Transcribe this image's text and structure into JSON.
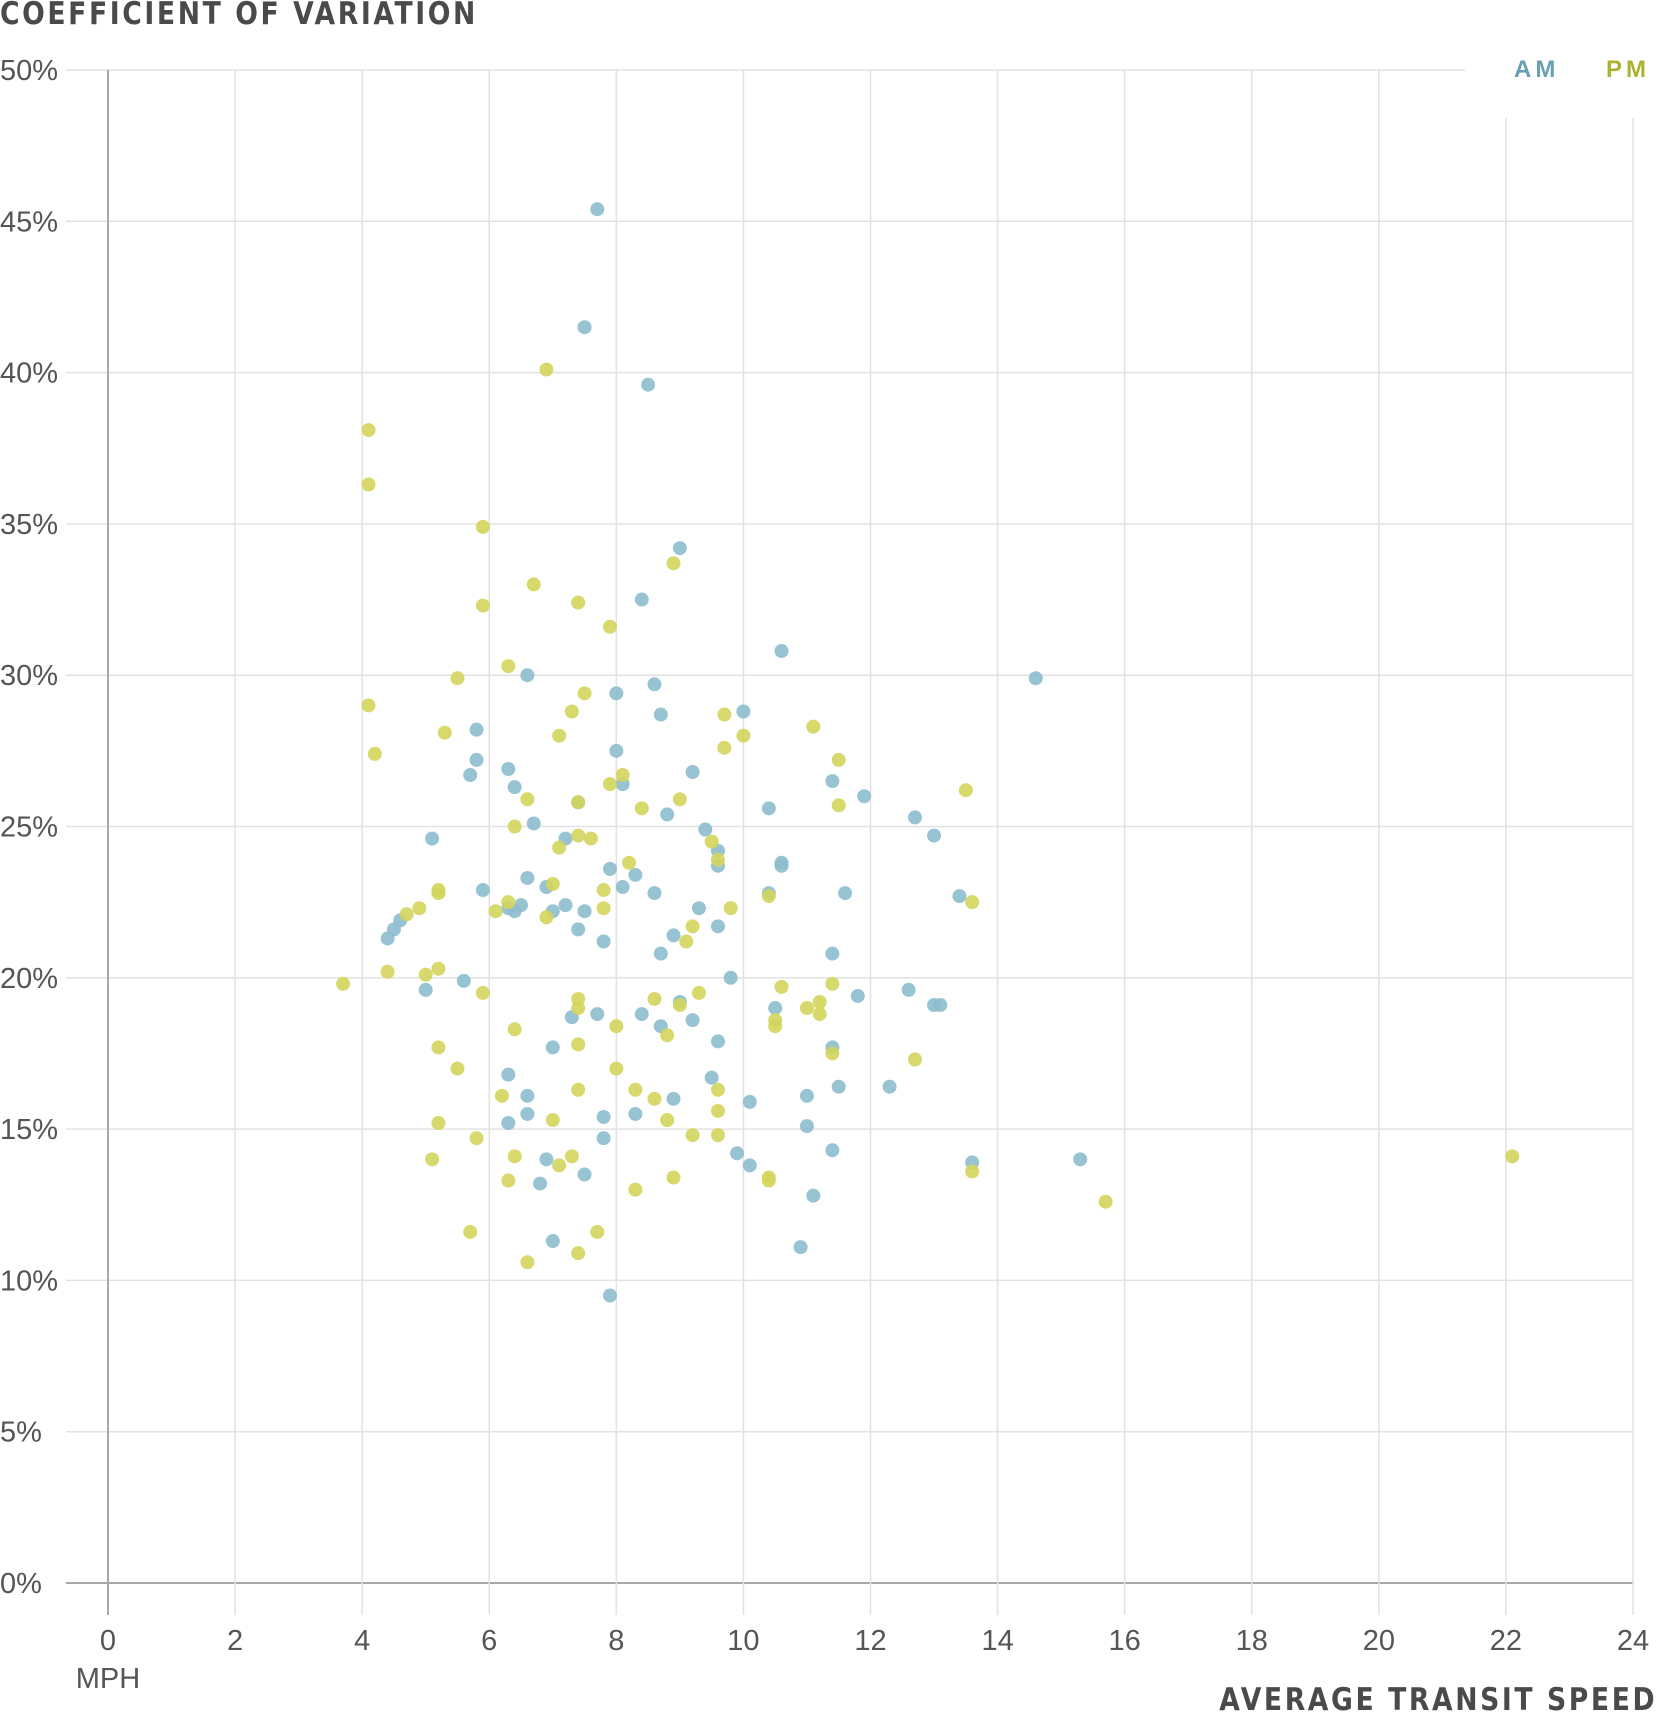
{
  "chart_data": {
    "type": "scatter",
    "title": "COEFFICIENT OF VARIATION",
    "xlabel": "AVERAGE TRANSIT SPEED",
    "x_unit": "MPH",
    "ylabel": "COEFFICIENT OF VARIATION",
    "xlim": [
      0,
      24
    ],
    "ylim": [
      0,
      50
    ],
    "x_ticks": [
      "0",
      "2",
      "4",
      "6",
      "8",
      "10",
      "12",
      "14",
      "16",
      "18",
      "20",
      "22",
      "24"
    ],
    "y_ticks": [
      "0%",
      "5%",
      "10%",
      "15%",
      "20%",
      "25%",
      "30%",
      "35%",
      "40%",
      "45%",
      "50%"
    ],
    "grid": true,
    "legend": "top-right",
    "series": [
      {
        "name": "AM",
        "color": "#8dbdce",
        "label_color": "#6a9fb5",
        "points": [
          [
            7.7,
            45.4
          ],
          [
            7.5,
            41.5
          ],
          [
            8.5,
            39.6
          ],
          [
            9.0,
            34.2
          ],
          [
            8.4,
            32.5
          ],
          [
            10.6,
            30.8
          ],
          [
            14.6,
            29.9
          ],
          [
            6.6,
            30.0
          ],
          [
            8.6,
            29.7
          ],
          [
            8.0,
            29.4
          ],
          [
            8.7,
            28.7
          ],
          [
            10.0,
            28.8
          ],
          [
            5.8,
            28.2
          ],
          [
            8.0,
            27.5
          ],
          [
            5.8,
            27.2
          ],
          [
            9.2,
            26.8
          ],
          [
            6.3,
            26.9
          ],
          [
            5.7,
            26.7
          ],
          [
            8.1,
            26.4
          ],
          [
            6.4,
            26.3
          ],
          [
            11.4,
            26.5
          ],
          [
            11.9,
            26.0
          ],
          [
            10.4,
            25.6
          ],
          [
            7.4,
            25.8
          ],
          [
            8.8,
            25.4
          ],
          [
            12.7,
            25.3
          ],
          [
            6.7,
            25.1
          ],
          [
            9.4,
            24.9
          ],
          [
            13.0,
            24.7
          ],
          [
            5.1,
            24.6
          ],
          [
            7.2,
            24.6
          ],
          [
            9.6,
            24.2
          ],
          [
            10.6,
            23.8
          ],
          [
            10.6,
            23.7
          ],
          [
            9.6,
            23.7
          ],
          [
            7.9,
            23.6
          ],
          [
            8.3,
            23.4
          ],
          [
            6.6,
            23.3
          ],
          [
            8.1,
            23.0
          ],
          [
            5.9,
            22.9
          ],
          [
            6.9,
            23.0
          ],
          [
            8.6,
            22.8
          ],
          [
            10.4,
            22.8
          ],
          [
            11.6,
            22.8
          ],
          [
            13.4,
            22.7
          ],
          [
            7.2,
            22.4
          ],
          [
            6.5,
            22.4
          ],
          [
            7.5,
            22.2
          ],
          [
            7.0,
            22.2
          ],
          [
            6.4,
            22.2
          ],
          [
            6.3,
            22.3
          ],
          [
            9.3,
            22.3
          ],
          [
            4.5,
            21.6
          ],
          [
            4.6,
            21.9
          ],
          [
            7.4,
            21.6
          ],
          [
            9.6,
            21.7
          ],
          [
            4.4,
            21.3
          ],
          [
            8.9,
            21.4
          ],
          [
            7.8,
            21.2
          ],
          [
            8.7,
            20.8
          ],
          [
            11.4,
            20.8
          ],
          [
            9.8,
            20.0
          ],
          [
            5.6,
            19.9
          ],
          [
            5.0,
            19.6
          ],
          [
            12.6,
            19.6
          ],
          [
            11.8,
            19.4
          ],
          [
            9.0,
            19.2
          ],
          [
            13.0,
            19.1
          ],
          [
            13.1,
            19.1
          ],
          [
            10.5,
            19.0
          ],
          [
            7.3,
            18.7
          ],
          [
            7.7,
            18.8
          ],
          [
            8.4,
            18.8
          ],
          [
            9.2,
            18.6
          ],
          [
            8.7,
            18.4
          ],
          [
            9.6,
            17.9
          ],
          [
            7.0,
            17.7
          ],
          [
            11.4,
            17.7
          ],
          [
            9.5,
            16.7
          ],
          [
            6.3,
            16.8
          ],
          [
            11.5,
            16.4
          ],
          [
            12.3,
            16.4
          ],
          [
            6.6,
            16.1
          ],
          [
            11.0,
            16.1
          ],
          [
            8.9,
            16.0
          ],
          [
            10.1,
            15.9
          ],
          [
            8.3,
            15.5
          ],
          [
            6.6,
            15.5
          ],
          [
            7.8,
            15.4
          ],
          [
            6.3,
            15.2
          ],
          [
            11.0,
            15.1
          ],
          [
            7.8,
            14.7
          ],
          [
            9.9,
            14.2
          ],
          [
            11.4,
            14.3
          ],
          [
            6.9,
            14.0
          ],
          [
            10.1,
            13.8
          ],
          [
            7.5,
            13.5
          ],
          [
            6.8,
            13.2
          ],
          [
            13.6,
            13.9
          ],
          [
            15.3,
            14.0
          ],
          [
            11.1,
            12.8
          ],
          [
            7.0,
            11.3
          ],
          [
            10.9,
            11.1
          ],
          [
            7.9,
            9.5
          ]
        ]
      },
      {
        "name": "PM",
        "color": "#d3d55c",
        "label_color": "#aab133",
        "points": [
          [
            6.9,
            40.1
          ],
          [
            4.1,
            38.1
          ],
          [
            4.1,
            36.3
          ],
          [
            5.9,
            34.9
          ],
          [
            8.9,
            33.7
          ],
          [
            6.7,
            33.0
          ],
          [
            7.4,
            32.4
          ],
          [
            5.9,
            32.3
          ],
          [
            7.9,
            31.6
          ],
          [
            6.3,
            30.3
          ],
          [
            5.5,
            29.9
          ],
          [
            7.5,
            29.4
          ],
          [
            4.1,
            29.0
          ],
          [
            7.3,
            28.8
          ],
          [
            9.7,
            28.7
          ],
          [
            11.1,
            28.3
          ],
          [
            7.1,
            28.0
          ],
          [
            5.3,
            28.1
          ],
          [
            10.0,
            28.0
          ],
          [
            4.2,
            27.4
          ],
          [
            9.7,
            27.6
          ],
          [
            11.5,
            27.2
          ],
          [
            8.1,
            26.7
          ],
          [
            7.9,
            26.4
          ],
          [
            13.5,
            26.2
          ],
          [
            6.6,
            25.9
          ],
          [
            9.0,
            25.9
          ],
          [
            11.5,
            25.7
          ],
          [
            8.4,
            25.6
          ],
          [
            7.4,
            25.8
          ],
          [
            6.4,
            25.0
          ],
          [
            7.6,
            24.6
          ],
          [
            7.4,
            24.7
          ],
          [
            9.5,
            24.5
          ],
          [
            7.1,
            24.3
          ],
          [
            8.2,
            23.8
          ],
          [
            9.6,
            23.9
          ],
          [
            7.0,
            23.1
          ],
          [
            5.2,
            22.9
          ],
          [
            5.2,
            22.8
          ],
          [
            7.8,
            22.9
          ],
          [
            6.3,
            22.5
          ],
          [
            10.4,
            22.7
          ],
          [
            13.6,
            22.5
          ],
          [
            4.9,
            22.3
          ],
          [
            4.7,
            22.1
          ],
          [
            6.1,
            22.2
          ],
          [
            7.8,
            22.3
          ],
          [
            9.8,
            22.3
          ],
          [
            6.9,
            22.0
          ],
          [
            9.2,
            21.7
          ],
          [
            9.1,
            21.2
          ],
          [
            4.4,
            20.2
          ],
          [
            5.2,
            20.3
          ],
          [
            5.0,
            20.1
          ],
          [
            3.7,
            19.8
          ],
          [
            11.4,
            19.8
          ],
          [
            10.6,
            19.7
          ],
          [
            5.9,
            19.5
          ],
          [
            9.3,
            19.5
          ],
          [
            7.4,
            19.3
          ],
          [
            8.6,
            19.3
          ],
          [
            9.0,
            19.1
          ],
          [
            11.0,
            19.0
          ],
          [
            11.2,
            19.2
          ],
          [
            7.4,
            19.0
          ],
          [
            11.2,
            18.8
          ],
          [
            10.5,
            18.6
          ],
          [
            10.5,
            18.4
          ],
          [
            6.4,
            18.3
          ],
          [
            8.0,
            18.4
          ],
          [
            8.8,
            18.1
          ],
          [
            5.2,
            17.7
          ],
          [
            7.4,
            17.8
          ],
          [
            11.4,
            17.5
          ],
          [
            12.7,
            17.3
          ],
          [
            8.0,
            17.0
          ],
          [
            5.5,
            17.0
          ],
          [
            9.6,
            16.3
          ],
          [
            7.4,
            16.3
          ],
          [
            8.3,
            16.3
          ],
          [
            6.2,
            16.1
          ],
          [
            8.6,
            16.0
          ],
          [
            5.2,
            15.2
          ],
          [
            7.0,
            15.3
          ],
          [
            8.8,
            15.3
          ],
          [
            9.6,
            15.6
          ],
          [
            5.8,
            14.7
          ],
          [
            9.2,
            14.8
          ],
          [
            9.6,
            14.8
          ],
          [
            5.1,
            14.0
          ],
          [
            6.4,
            14.1
          ],
          [
            7.3,
            14.1
          ],
          [
            7.1,
            13.8
          ],
          [
            10.4,
            13.4
          ],
          [
            8.9,
            13.4
          ],
          [
            6.3,
            13.3
          ],
          [
            10.4,
            13.3
          ],
          [
            8.3,
            13.0
          ],
          [
            13.6,
            13.6
          ],
          [
            15.7,
            12.6
          ],
          [
            22.1,
            14.1
          ],
          [
            5.7,
            11.6
          ],
          [
            7.7,
            11.6
          ],
          [
            6.6,
            10.6
          ],
          [
            7.4,
            10.9
          ]
        ]
      }
    ]
  }
}
